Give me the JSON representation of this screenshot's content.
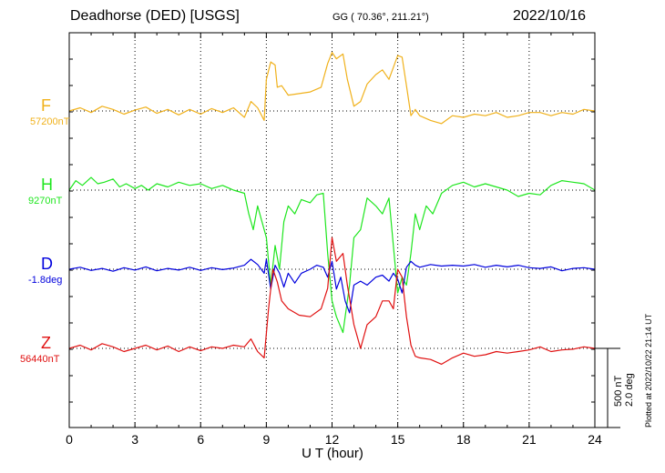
{
  "header": {
    "station": "Deadhorse (DED)  [USGS]",
    "coords": "GG ( 70.36°, 211.21°)",
    "date": "2022/10/16"
  },
  "scale": {
    "line1": "500 nT",
    "line2": "2.0 deg"
  },
  "plotted_note": "Plotted at 2022/10/22 21:14 UT",
  "colors": {
    "F": "#f0b11b",
    "H": "#1ee61e",
    "D": "#0000dd",
    "Z": "#e01010",
    "grid": "#000000"
  },
  "chart_data": {
    "type": "line",
    "title": "Deadhorse (DED)  [USGS]",
    "xlabel": "U T (hour)",
    "ylabel": "",
    "xlim": [
      0,
      24
    ],
    "x_ticks": [
      "0",
      "3",
      "6",
      "9",
      "12",
      "15",
      "18",
      "21",
      "24"
    ],
    "grid": true,
    "scale_bar": "500 nT / 2.0 deg",
    "series": [
      {
        "name": "F",
        "baseline_label": "57200nT",
        "color": "#f0b11b",
        "x": [
          0,
          0.5,
          1,
          1.5,
          2,
          2.5,
          3,
          3.5,
          4,
          4.5,
          5,
          5.5,
          6,
          6.5,
          7,
          7.5,
          8,
          8.3,
          8.6,
          8.9,
          9,
          9.2,
          9.4,
          9.5,
          9.7,
          10,
          10.5,
          11,
          11.5,
          11.8,
          12,
          12.2,
          12.5,
          12.7,
          13,
          13.3,
          13.6,
          14,
          14.3,
          14.6,
          15,
          15.2,
          15.4,
          15.6,
          15.8,
          16,
          16.5,
          17,
          17.5,
          18,
          18.5,
          19,
          19.5,
          20,
          20.5,
          21,
          21.5,
          22,
          22.5,
          23,
          23.5,
          24
        ],
        "values": [
          0,
          20,
          -10,
          30,
          10,
          -20,
          5,
          25,
          -15,
          10,
          -25,
          10,
          -20,
          15,
          -10,
          20,
          -40,
          60,
          20,
          -60,
          200,
          310,
          290,
          150,
          160,
          100,
          110,
          120,
          150,
          300,
          370,
          330,
          360,
          200,
          30,
          60,
          170,
          230,
          260,
          200,
          350,
          340,
          160,
          -30,
          10,
          -30,
          -60,
          -80,
          -30,
          -40,
          -20,
          -30,
          -10,
          -40,
          -30,
          -10,
          -10,
          -30,
          -10,
          -20,
          10,
          0
        ]
      },
      {
        "name": "H",
        "baseline_label": "9270nT",
        "color": "#1ee61e",
        "x": [
          0,
          0.3,
          0.6,
          1,
          1.3,
          1.6,
          2,
          2.3,
          2.6,
          3,
          3.3,
          3.6,
          4,
          4.5,
          5,
          5.5,
          6,
          6.5,
          7,
          7.5,
          8,
          8.2,
          8.4,
          8.6,
          8.8,
          9,
          9.2,
          9.4,
          9.6,
          9.8,
          10,
          10.3,
          10.6,
          11,
          11.3,
          11.6,
          11.8,
          12,
          12.2,
          12.5,
          12.8,
          13,
          13.3,
          13.6,
          14,
          14.3,
          14.6,
          14.8,
          15,
          15.2,
          15.4,
          15.6,
          15.8,
          16,
          16.3,
          16.6,
          17,
          17.5,
          18,
          18.5,
          19,
          19.5,
          20,
          20.5,
          21,
          21.5,
          22,
          22.5,
          23,
          23.5,
          24
        ],
        "values": [
          0,
          60,
          30,
          80,
          40,
          50,
          70,
          20,
          40,
          10,
          30,
          0,
          40,
          20,
          50,
          30,
          40,
          10,
          30,
          0,
          -20,
          -150,
          -250,
          -100,
          -200,
          -300,
          -600,
          -350,
          -500,
          -200,
          -100,
          -150,
          -60,
          -80,
          -30,
          -20,
          -400,
          -700,
          -800,
          -900,
          -600,
          -300,
          -250,
          -50,
          -100,
          -150,
          -50,
          -350,
          -650,
          -550,
          -600,
          -400,
          -150,
          -250,
          -100,
          -150,
          -20,
          30,
          50,
          20,
          40,
          20,
          0,
          -40,
          -20,
          -30,
          30,
          60,
          50,
          40,
          0
        ]
      },
      {
        "name": "D",
        "baseline_label": "-1.8deg",
        "color": "#0000dd",
        "x": [
          0,
          0.5,
          1,
          1.5,
          2,
          2.5,
          3,
          3.5,
          4,
          4.5,
          5,
          5.5,
          6,
          6.5,
          7,
          7.5,
          8,
          8.3,
          8.6,
          8.9,
          9,
          9.2,
          9.4,
          9.6,
          9.8,
          10,
          10.3,
          10.6,
          11,
          11.3,
          11.6,
          11.8,
          12,
          12.2,
          12.4,
          12.6,
          12.8,
          13,
          13.3,
          13.6,
          14,
          14.3,
          14.6,
          14.8,
          15,
          15.2,
          15.4,
          15.6,
          15.8,
          16,
          16.5,
          17,
          17.5,
          18,
          18.5,
          19,
          19.5,
          20,
          20.5,
          21,
          21.5,
          22,
          22.5,
          23,
          23.5,
          24
        ],
        "values": [
          0,
          0.05,
          -0.03,
          0.02,
          -0.05,
          0.04,
          -0.02,
          0.06,
          -0.04,
          0.02,
          -0.02,
          0.05,
          -0.03,
          0.04,
          -0.01,
          0.03,
          0.1,
          0.25,
          0.12,
          -0.1,
          0.25,
          -0.5,
          0.1,
          -0.1,
          -0.45,
          -0.1,
          -0.35,
          -0.1,
          0,
          0.1,
          0.05,
          -0.2,
          0.2,
          -0.5,
          -0.2,
          -0.8,
          -1.1,
          -0.4,
          -0.3,
          -0.4,
          -0.2,
          -0.15,
          -0.3,
          -0.1,
          -0.25,
          -0.6,
          0.05,
          0.2,
          0.1,
          0.05,
          0.12,
          0.08,
          0.1,
          0.08,
          0.12,
          0.05,
          0.1,
          0.06,
          0.1,
          0.04,
          0.02,
          0.06,
          -0.04,
          0.02,
          0.04,
          0
        ]
      },
      {
        "name": "Z",
        "baseline_label": "56440nT",
        "color": "#e01010",
        "x": [
          0,
          0.5,
          1,
          1.5,
          2,
          2.5,
          3,
          3.5,
          4,
          4.5,
          5,
          5.5,
          6,
          6.5,
          7,
          7.5,
          8,
          8.3,
          8.6,
          8.9,
          9.1,
          9.3,
          9.5,
          9.7,
          10,
          10.5,
          11,
          11.5,
          11.8,
          12,
          12.2,
          12.5,
          12.7,
          13,
          13.3,
          13.6,
          14,
          14.3,
          14.6,
          14.8,
          15,
          15.2,
          15.4,
          15.6,
          15.8,
          16,
          16.5,
          17,
          17.5,
          18,
          18.5,
          19,
          19.5,
          20,
          20.5,
          21,
          21.5,
          22,
          22.5,
          23,
          23.5,
          24
        ],
        "values": [
          0,
          20,
          -10,
          30,
          10,
          -20,
          0,
          20,
          -10,
          15,
          -20,
          10,
          -15,
          10,
          0,
          20,
          10,
          60,
          -20,
          -60,
          250,
          500,
          420,
          300,
          250,
          210,
          200,
          250,
          380,
          700,
          550,
          600,
          400,
          150,
          0,
          150,
          200,
          300,
          300,
          250,
          500,
          450,
          200,
          20,
          -50,
          -60,
          -70,
          -100,
          -60,
          -30,
          -50,
          -40,
          -20,
          -30,
          -20,
          -10,
          10,
          -20,
          -10,
          -5,
          10,
          0
        ]
      }
    ]
  }
}
